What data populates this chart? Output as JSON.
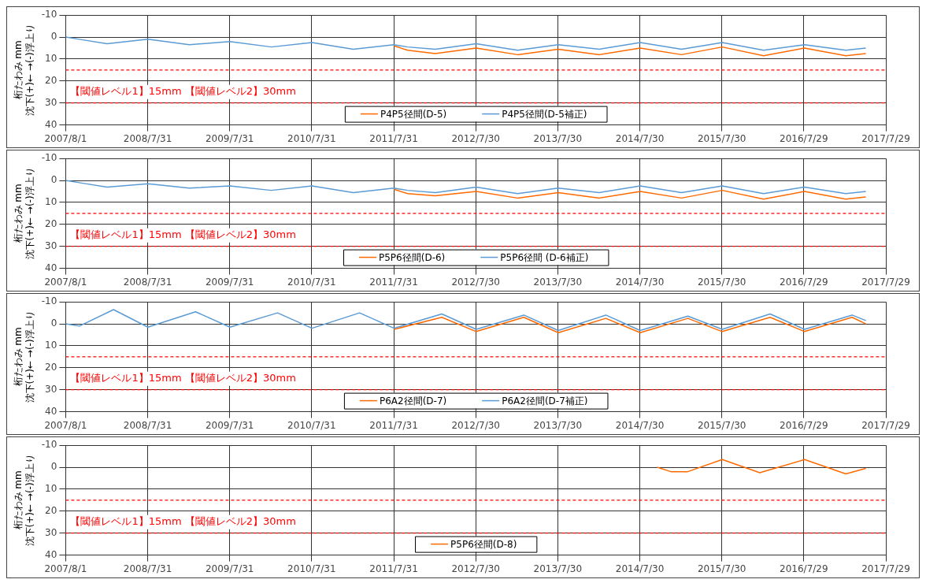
{
  "chart_data": [
    {
      "type": "line",
      "ylabel": "桁たわみ mm\n沈下(+)← →(-)浮上り",
      "annotations": [
        "【閾値レベル1】15mm 【閾値レベル2】30mm"
      ],
      "xlim": [
        "2007-08-01",
        "2017-07-29"
      ],
      "xticks": [
        {
          "value": "2007-08-01",
          "label": "2007/8/1"
        },
        {
          "value": "2008-07-31",
          "label": "2008/7/31"
        },
        {
          "value": "2009-07-31",
          "label": "2009/7/31"
        },
        {
          "value": "2010-07-31",
          "label": "2010/7/31"
        },
        {
          "value": "2011-07-31",
          "label": "2011/7/31"
        },
        {
          "value": "2012-07-30",
          "label": "2012/7/30"
        },
        {
          "value": "2013-07-30",
          "label": "2013/7/30"
        },
        {
          "value": "2014-07-30",
          "label": "2014/7/30"
        },
        {
          "value": "2015-07-30",
          "label": "2015/7/30"
        },
        {
          "value": "2016-07-29",
          "label": "2016/7/29"
        },
        {
          "value": "2017-07-29",
          "label": "2017/7/29"
        }
      ],
      "ylim": [
        40,
        -10
      ],
      "yticks": [
        -10,
        0,
        10,
        20,
        30,
        40
      ],
      "grid": true,
      "legend": "bottom",
      "ref_lines": [
        {
          "axis": "y",
          "value": 15,
          "color": "#ff0000",
          "line_style": "dashed"
        },
        {
          "axis": "y",
          "value": 30,
          "color": "#ff0000",
          "line_style": "dashed"
        }
      ],
      "series": [
        {
          "name": "P4P5径間(D-5)",
          "color": "#ff6a00",
          "x": [
            "2011-08-01",
            "2011-10-01",
            "2012-02-01",
            "2012-08-01",
            "2013-02-01",
            "2013-08-01",
            "2014-02-01",
            "2014-08-01",
            "2015-02-01",
            "2015-08-01",
            "2016-02-01",
            "2016-08-01",
            "2017-02-01",
            "2017-05-01"
          ],
          "values": [
            4,
            6,
            7.5,
            5,
            8,
            5.5,
            8,
            5,
            8,
            4.5,
            8.5,
            5,
            8.5,
            7.5
          ]
        },
        {
          "name": "P4P5径間(D-5補正)",
          "color": "#5b9bd5",
          "x": [
            "2007-08-01",
            "2007-10-01",
            "2008-02-01",
            "2008-08-01",
            "2009-02-01",
            "2009-08-01",
            "2010-02-01",
            "2010-08-01",
            "2011-02-01",
            "2011-08-01",
            "2011-10-01",
            "2012-02-01",
            "2012-08-01",
            "2013-02-01",
            "2013-08-01",
            "2014-02-01",
            "2014-08-01",
            "2015-02-01",
            "2015-08-01",
            "2016-02-01",
            "2016-08-01",
            "2017-02-01",
            "2017-05-01"
          ],
          "values": [
            0,
            1,
            3,
            1,
            3.5,
            2,
            4.5,
            2.5,
            5.5,
            3.5,
            4.5,
            5.5,
            3,
            6,
            3.5,
            5.5,
            2.5,
            5.5,
            2.5,
            6,
            3.5,
            6,
            5
          ]
        }
      ]
    },
    {
      "type": "line",
      "ylabel": "桁たわみ mm\n沈下(+)← →(-)浮上り",
      "annotations": [
        "【閾値レベル1】15mm 【閾値レベル2】30mm"
      ],
      "xlim": [
        "2007-08-01",
        "2017-07-29"
      ],
      "xticks": [
        {
          "value": "2007-08-01",
          "label": "2007/8/1"
        },
        {
          "value": "2008-07-31",
          "label": "2008/7/31"
        },
        {
          "value": "2009-07-31",
          "label": "2009/7/31"
        },
        {
          "value": "2010-07-31",
          "label": "2010/7/31"
        },
        {
          "value": "2011-07-31",
          "label": "2011/7/31"
        },
        {
          "value": "2012-07-30",
          "label": "2012/7/30"
        },
        {
          "value": "2013-07-30",
          "label": "2013/7/30"
        },
        {
          "value": "2014-07-30",
          "label": "2014/7/30"
        },
        {
          "value": "2015-07-30",
          "label": "2015/7/30"
        },
        {
          "value": "2016-07-29",
          "label": "2016/7/29"
        },
        {
          "value": "2017-07-29",
          "label": "2017/7/29"
        }
      ],
      "ylim": [
        40,
        -10
      ],
      "yticks": [
        -10,
        0,
        10,
        20,
        30,
        40
      ],
      "grid": true,
      "legend": "bottom",
      "ref_lines": [
        {
          "axis": "y",
          "value": 15,
          "color": "#ff0000",
          "line_style": "dashed"
        },
        {
          "axis": "y",
          "value": 30,
          "color": "#ff0000",
          "line_style": "dashed"
        }
      ],
      "series": [
        {
          "name": "P5P6径間(D-6)",
          "color": "#ff6a00",
          "x": [
            "2011-08-01",
            "2011-10-01",
            "2012-02-01",
            "2012-08-01",
            "2013-02-01",
            "2013-08-01",
            "2014-02-01",
            "2014-08-01",
            "2015-02-01",
            "2015-08-01",
            "2016-02-01",
            "2016-08-01",
            "2017-02-01",
            "2017-05-01"
          ],
          "values": [
            4,
            6,
            7,
            5,
            8,
            5.5,
            8,
            5,
            8,
            4.5,
            8.5,
            5,
            8.5,
            7.5
          ]
        },
        {
          "name": "P5P6径間 (D-6補正)",
          "color": "#5b9bd5",
          "x": [
            "2007-08-01",
            "2007-10-01",
            "2008-02-01",
            "2008-08-01",
            "2009-02-01",
            "2009-08-01",
            "2010-02-01",
            "2010-08-01",
            "2011-02-01",
            "2011-08-01",
            "2011-10-01",
            "2012-02-01",
            "2012-08-01",
            "2013-02-01",
            "2013-08-01",
            "2014-02-01",
            "2014-08-01",
            "2015-02-01",
            "2015-08-01",
            "2016-02-01",
            "2016-08-01",
            "2017-02-01",
            "2017-05-01"
          ],
          "values": [
            0,
            1,
            3,
            1.5,
            3.5,
            2.5,
            4.5,
            2.5,
            5.5,
            3.5,
            4.5,
            5.5,
            3,
            6,
            3.5,
            5.5,
            2.5,
            5.5,
            2.5,
            6,
            3,
            6,
            5
          ]
        }
      ]
    },
    {
      "type": "line",
      "ylabel": "桁たわみ mm\n沈下(+)← →(-)浮上り",
      "annotations": [
        "【閾値レベル1】15mm 【閾値レベル2】30mm"
      ],
      "xlim": [
        "2007-08-01",
        "2017-07-29"
      ],
      "xticks": [
        {
          "value": "2007-08-01",
          "label": "2007/8/1"
        },
        {
          "value": "2008-07-31",
          "label": "2008/7/31"
        },
        {
          "value": "2009-07-31",
          "label": "2009/7/31"
        },
        {
          "value": "2010-07-31",
          "label": "2010/7/31"
        },
        {
          "value": "2011-07-31",
          "label": "2011/7/31"
        },
        {
          "value": "2012-07-30",
          "label": "2012/7/30"
        },
        {
          "value": "2013-07-30",
          "label": "2013/7/30"
        },
        {
          "value": "2014-07-30",
          "label": "2014/7/30"
        },
        {
          "value": "2015-07-30",
          "label": "2015/7/30"
        },
        {
          "value": "2016-07-29",
          "label": "2016/7/29"
        },
        {
          "value": "2017-07-29",
          "label": "2017/7/29"
        }
      ],
      "ylim": [
        40,
        -10
      ],
      "yticks": [
        -10,
        0,
        10,
        20,
        30,
        40
      ],
      "grid": true,
      "legend": "bottom",
      "ref_lines": [
        {
          "axis": "y",
          "value": 15,
          "color": "#ff0000",
          "line_style": "dashed"
        },
        {
          "axis": "y",
          "value": 30,
          "color": "#ff0000",
          "line_style": "dashed"
        }
      ],
      "series": [
        {
          "name": "P6A2径間(D-7)",
          "color": "#ff6a00",
          "x": [
            "2011-08-01",
            "2012-03-01",
            "2012-08-01",
            "2013-03-01",
            "2013-08-01",
            "2014-03-01",
            "2014-08-01",
            "2015-03-01",
            "2015-08-01",
            "2016-03-01",
            "2016-08-01",
            "2017-03-01",
            "2017-05-01"
          ],
          "values": [
            2.5,
            -3,
            3.5,
            -3,
            4,
            -2.5,
            4,
            -2.5,
            3.5,
            -3,
            3.5,
            -3,
            0
          ]
        },
        {
          "name": "P6A2径間(D-7補正)",
          "color": "#5b9bd5",
          "x": [
            "2007-08-01",
            "2007-10-01",
            "2008-03-01",
            "2008-08-01",
            "2009-03-01",
            "2009-08-01",
            "2010-03-01",
            "2010-08-01",
            "2011-03-01",
            "2011-08-01",
            "2012-03-01",
            "2012-08-01",
            "2013-03-01",
            "2013-08-01",
            "2014-03-01",
            "2014-08-01",
            "2015-03-01",
            "2015-08-01",
            "2016-03-01",
            "2016-08-01",
            "2017-03-01",
            "2017-05-01"
          ],
          "values": [
            0,
            1,
            -6.5,
            1.5,
            -5.5,
            1.5,
            -5,
            2,
            -5,
            2,
            -4.5,
            2.5,
            -4,
            3,
            -4,
            3,
            -3.5,
            2.5,
            -4.5,
            2.5,
            -4,
            -1.5
          ]
        }
      ]
    },
    {
      "type": "line",
      "ylabel": "桁たわみ mm\n沈下(+)← →(-)浮上り",
      "annotations": [
        "【閾値レベル1】15mm 【閾値レベル2】30mm"
      ],
      "xlim": [
        "2007-08-01",
        "2017-07-29"
      ],
      "xticks": [
        {
          "value": "2007-08-01",
          "label": "2007/8/1"
        },
        {
          "value": "2008-07-31",
          "label": "2008/7/31"
        },
        {
          "value": "2009-07-31",
          "label": "2009/7/31"
        },
        {
          "value": "2010-07-31",
          "label": "2010/7/31"
        },
        {
          "value": "2011-07-31",
          "label": "2011/7/31"
        },
        {
          "value": "2012-07-30",
          "label": "2012/7/30"
        },
        {
          "value": "2013-07-30",
          "label": "2013/7/30"
        },
        {
          "value": "2014-07-30",
          "label": "2014/7/30"
        },
        {
          "value": "2015-07-30",
          "label": "2015/7/30"
        },
        {
          "value": "2016-07-29",
          "label": "2016/7/29"
        },
        {
          "value": "2017-07-29",
          "label": "2017/7/29"
        }
      ],
      "ylim": [
        40,
        -10
      ],
      "yticks": [
        -10,
        0,
        10,
        20,
        30,
        40
      ],
      "grid": true,
      "legend": "bottom",
      "ref_lines": [
        {
          "axis": "y",
          "value": 15,
          "color": "#ff0000",
          "line_style": "dashed"
        },
        {
          "axis": "y",
          "value": 30,
          "color": "#ff0000",
          "line_style": "dashed"
        }
      ],
      "series": [
        {
          "name": "P5P6径間(D-8)",
          "color": "#ff6a00",
          "x": [
            "2014-10-15",
            "2014-12-15",
            "2015-03-01",
            "2015-08-01",
            "2016-01-15",
            "2016-08-01",
            "2017-02-01",
            "2017-05-01"
          ],
          "values": [
            0,
            2,
            2,
            -3.5,
            2.5,
            -3.5,
            3,
            0.5
          ]
        }
      ]
    }
  ]
}
